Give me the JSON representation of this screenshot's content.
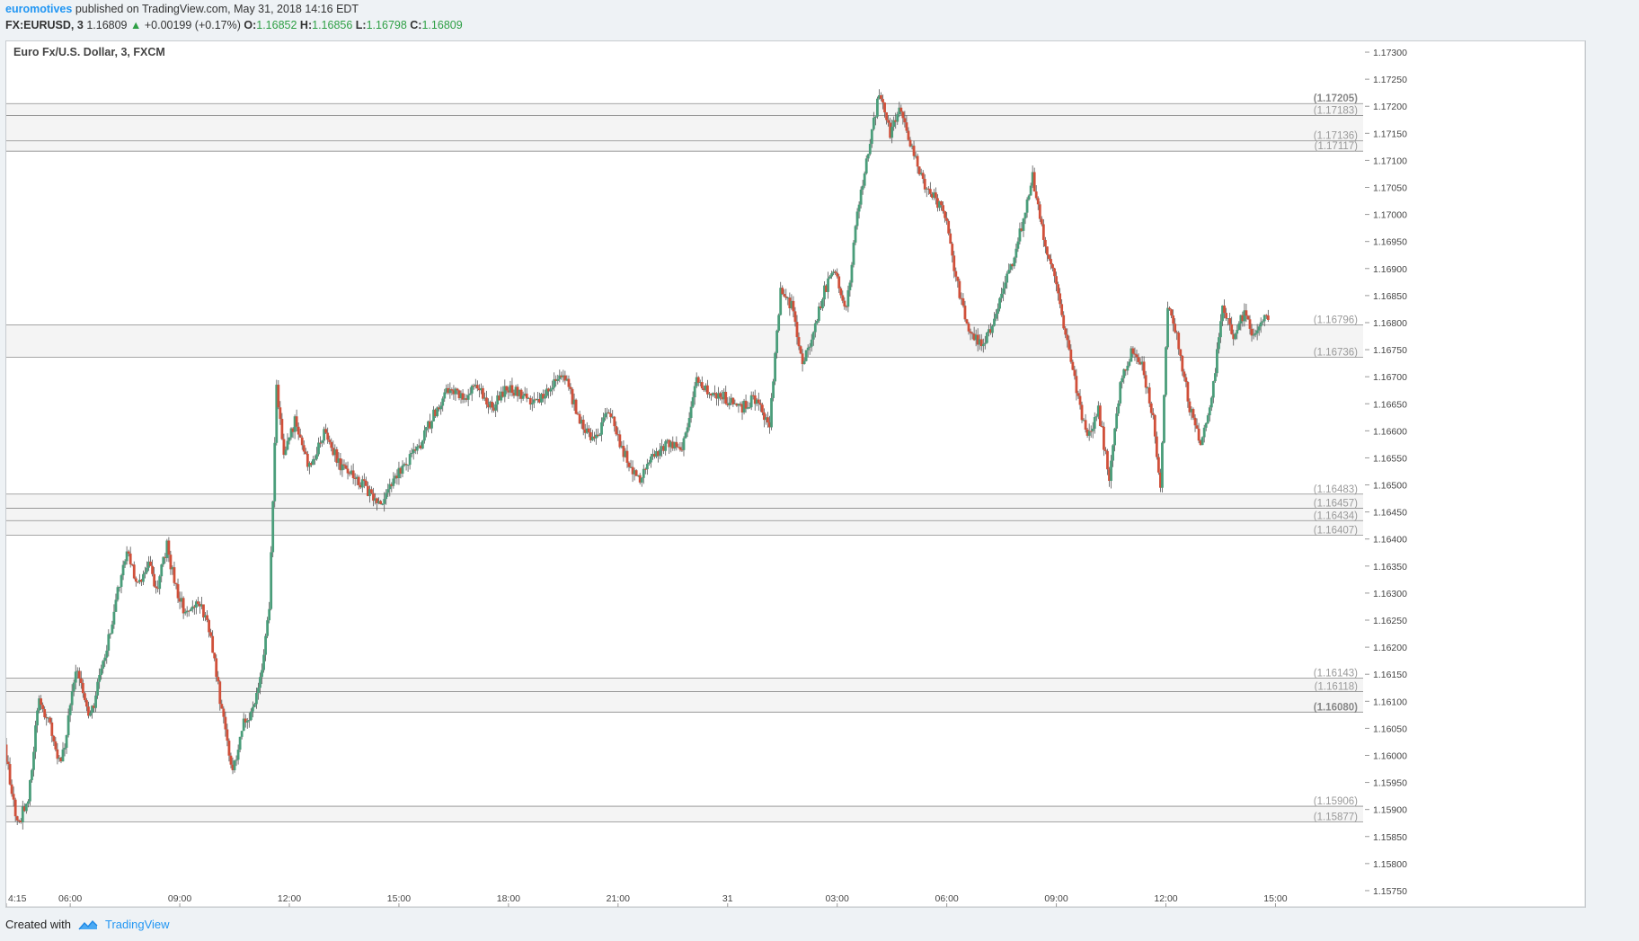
{
  "header": {
    "author": "euromotives",
    "published": "published on TradingView.com, May 31, 2018 14:16 EDT",
    "symbol": "FX:EURUSD, 3",
    "last": "1.16809",
    "change_arrow": "▲",
    "change": "+0.00199 (+0.17%)",
    "o_label": "O:",
    "o_value": "1.16852",
    "h_label": "H:",
    "h_value": "1.16856",
    "l_label": "L:",
    "l_value": "1.16798",
    "c_label": "C:",
    "c_value": "1.16809"
  },
  "footer": {
    "created_with": "Created with",
    "brand": "TradingView",
    "logo_icon": "tradingview-cloud-icon"
  },
  "colors": {
    "up": "#4a9d7a",
    "down": "#d0503a",
    "wick": "#555555",
    "zone_fill": "#f4f4f4",
    "zone_line": "#8a8a8a",
    "level_label": "#9a9a9a",
    "accent": "#2196f3"
  },
  "chart_data": {
    "type": "candlestick",
    "title": "Euro Fx/U.S. Dollar, 3, FXCM",
    "ylim": [
      1.1572,
      1.1732
    ],
    "y_ticks": [
      "1.17300",
      "1.17250",
      "1.17200",
      "1.17150",
      "1.17100",
      "1.17050",
      "1.17000",
      "1.16950",
      "1.16900",
      "1.16850",
      "1.16800",
      "1.16750",
      "1.16700",
      "1.16650",
      "1.16600",
      "1.16550",
      "1.16500",
      "1.16450",
      "1.16400",
      "1.16350",
      "1.16300",
      "1.16250",
      "1.16200",
      "1.16150",
      "1.16100",
      "1.16050",
      "1.16000",
      "1.15950",
      "1.15900",
      "1.15850",
      "1.15800",
      "1.15750"
    ],
    "x_ticks": [
      "4:15",
      "06:00",
      "09:00",
      "12:00",
      "15:00",
      "18:00",
      "21:00",
      "31",
      "03:00",
      "06:00",
      "09:00",
      "12:00",
      "15:00"
    ],
    "x_tick_hours": [
      4.25,
      6,
      9,
      12,
      15,
      18,
      21,
      24,
      27,
      30,
      33,
      36,
      39
    ],
    "x_range_hours": [
      4.25,
      41.4
    ],
    "zones": [
      {
        "top": 1.17205,
        "bottom": 1.17183
      },
      {
        "top": 1.17183,
        "bottom": 1.17136
      },
      {
        "top": 1.17136,
        "bottom": 1.17117
      },
      {
        "top": 1.16796,
        "bottom": 1.16736
      },
      {
        "top": 1.16483,
        "bottom": 1.16457
      },
      {
        "top": 1.16457,
        "bottom": 1.16434
      },
      {
        "top": 1.16434,
        "bottom": 1.16407
      },
      {
        "top": 1.16143,
        "bottom": 1.16118
      },
      {
        "top": 1.16118,
        "bottom": 1.1608
      },
      {
        "top": 1.15906,
        "bottom": 1.15877
      }
    ],
    "level_labels": [
      "(1.17205)",
      "(1.17183)",
      "(1.17136)",
      "(1.17117)",
      "(1.16796)",
      "(1.16736)",
      "(1.16483)",
      "(1.16457)",
      "(1.16434)",
      "(1.16407)",
      "(1.16143)",
      "(1.16118)",
      "(1.16080)",
      "(1.15906)",
      "(1.15877)"
    ],
    "level_values": [
      1.17205,
      1.17183,
      1.17136,
      1.17117,
      1.16796,
      1.16736,
      1.16483,
      1.16457,
      1.16434,
      1.16407,
      1.16143,
      1.16118,
      1.1608,
      1.15906,
      1.15877
    ],
    "level_bold": [
      true,
      false,
      false,
      false,
      false,
      false,
      false,
      false,
      false,
      false,
      false,
      false,
      true,
      false,
      false
    ],
    "price_path": [
      [
        4.25,
        1.1602
      ],
      [
        4.6,
        1.1587
      ],
      [
        4.9,
        1.1592
      ],
      [
        5.2,
        1.1611
      ],
      [
        5.5,
        1.1605
      ],
      [
        5.8,
        1.1598
      ],
      [
        6.2,
        1.1616
      ],
      [
        6.6,
        1.1607
      ],
      [
        7.0,
        1.1618
      ],
      [
        7.4,
        1.1632
      ],
      [
        7.6,
        1.1638
      ],
      [
        7.9,
        1.1631
      ],
      [
        8.2,
        1.1636
      ],
      [
        8.4,
        1.163
      ],
      [
        8.7,
        1.1639
      ],
      [
        8.9,
        1.1632
      ],
      [
        9.2,
        1.1626
      ],
      [
        9.6,
        1.1628
      ],
      [
        9.9,
        1.1622
      ],
      [
        10.2,
        1.1608
      ],
      [
        10.5,
        1.1597
      ],
      [
        10.8,
        1.1606
      ],
      [
        11.1,
        1.1609
      ],
      [
        11.3,
        1.1615
      ],
      [
        11.5,
        1.1628
      ],
      [
        11.7,
        1.1668
      ],
      [
        11.9,
        1.1655
      ],
      [
        12.2,
        1.1662
      ],
      [
        12.6,
        1.1653
      ],
      [
        13.0,
        1.166
      ],
      [
        13.4,
        1.1654
      ],
      [
        13.8,
        1.1652
      ],
      [
        14.2,
        1.1649
      ],
      [
        14.5,
        1.1646
      ],
      [
        14.8,
        1.165
      ],
      [
        15.2,
        1.1654
      ],
      [
        15.6,
        1.1657
      ],
      [
        16.0,
        1.1663
      ],
      [
        16.4,
        1.1668
      ],
      [
        16.8,
        1.1666
      ],
      [
        17.2,
        1.1668
      ],
      [
        17.6,
        1.1664
      ],
      [
        18.0,
        1.1668
      ],
      [
        18.4,
        1.1667
      ],
      [
        18.8,
        1.1665
      ],
      [
        19.2,
        1.1668
      ],
      [
        19.6,
        1.167
      ],
      [
        20.0,
        1.1662
      ],
      [
        20.4,
        1.1658
      ],
      [
        20.8,
        1.1664
      ],
      [
        21.2,
        1.1656
      ],
      [
        21.6,
        1.1651
      ],
      [
        22.0,
        1.1655
      ],
      [
        22.4,
        1.1658
      ],
      [
        22.8,
        1.1657
      ],
      [
        23.2,
        1.1669
      ],
      [
        23.6,
        1.1667
      ],
      [
        24.0,
        1.1666
      ],
      [
        24.4,
        1.1664
      ],
      [
        24.8,
        1.1666
      ],
      [
        25.2,
        1.1661
      ],
      [
        25.5,
        1.1686
      ],
      [
        25.8,
        1.1683
      ],
      [
        26.1,
        1.1672
      ],
      [
        26.4,
        1.1678
      ],
      [
        26.7,
        1.1686
      ],
      [
        27.0,
        1.169
      ],
      [
        27.3,
        1.1682
      ],
      [
        27.6,
        1.17
      ],
      [
        27.9,
        1.1712
      ],
      [
        28.2,
        1.1722
      ],
      [
        28.5,
        1.1715
      ],
      [
        28.8,
        1.172
      ],
      [
        29.1,
        1.1712
      ],
      [
        29.4,
        1.1706
      ],
      [
        29.7,
        1.1703
      ],
      [
        30.0,
        1.17
      ],
      [
        30.3,
        1.1688
      ],
      [
        30.6,
        1.168
      ],
      [
        30.9,
        1.1676
      ],
      [
        31.2,
        1.1678
      ],
      [
        31.5,
        1.1684
      ],
      [
        31.8,
        1.169
      ],
      [
        32.1,
        1.1698
      ],
      [
        32.4,
        1.1707
      ],
      [
        32.7,
        1.1696
      ],
      [
        33.0,
        1.1688
      ],
      [
        33.3,
        1.1678
      ],
      [
        33.6,
        1.1668
      ],
      [
        33.9,
        1.1658
      ],
      [
        34.2,
        1.1664
      ],
      [
        34.5,
        1.1651
      ],
      [
        34.8,
        1.1668
      ],
      [
        35.1,
        1.1675
      ],
      [
        35.4,
        1.1672
      ],
      [
        35.7,
        1.1662
      ],
      [
        35.9,
        1.165
      ],
      [
        36.1,
        1.1683
      ],
      [
        36.4,
        1.1676
      ],
      [
        36.7,
        1.1664
      ],
      [
        37.0,
        1.1658
      ],
      [
        37.3,
        1.1666
      ],
      [
        37.6,
        1.1683
      ],
      [
        37.9,
        1.1678
      ],
      [
        38.2,
        1.1682
      ],
      [
        38.5,
        1.1677
      ],
      [
        38.8,
        1.1681
      ]
    ]
  }
}
